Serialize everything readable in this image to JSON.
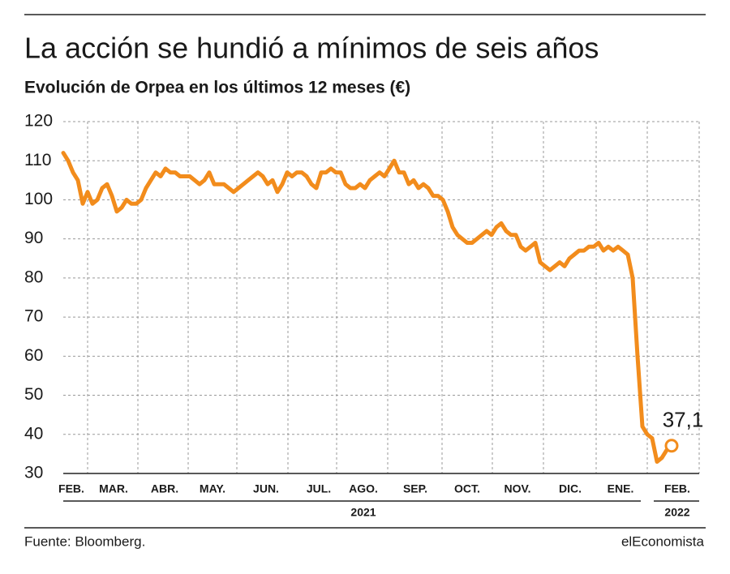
{
  "chart_data": {
    "type": "line",
    "title": "La acción se hundió a mínimos de seis años",
    "subtitle": "Evolución de Orpea en los últimos 12 meses (€)",
    "series": [
      {
        "color": "#f28c1c",
        "values": [
          112,
          110,
          107,
          105,
          99,
          102,
          99,
          100,
          103,
          104,
          101,
          97,
          98,
          100,
          99,
          99,
          100,
          103,
          105,
          107,
          106,
          108,
          107,
          107,
          106,
          106,
          106,
          105,
          104,
          105,
          107,
          104,
          104,
          104,
          103,
          102,
          103,
          104,
          105,
          106,
          107,
          106,
          104,
          105,
          102,
          104,
          107,
          106,
          107,
          107,
          106,
          104,
          103,
          107,
          107,
          108,
          107,
          107,
          104,
          103,
          103,
          104,
          103,
          105,
          106,
          107,
          106,
          108,
          110,
          107,
          107,
          104,
          105,
          103,
          104,
          103,
          101,
          101,
          100,
          97,
          93,
          91,
          90,
          89,
          89,
          90,
          91,
          92,
          91,
          93,
          94,
          92,
          91,
          91,
          88,
          87,
          88,
          89,
          84,
          83,
          82,
          83,
          84,
          83,
          85,
          86,
          87,
          87,
          88,
          88,
          89,
          87,
          88,
          87,
          88,
          87,
          86,
          80,
          60,
          42,
          40,
          39,
          33,
          34,
          36,
          37.1
        ],
        "value_labels": [
          null,
          null,
          null,
          null,
          null,
          null,
          null,
          null,
          null,
          null,
          null,
          null,
          null,
          null,
          null,
          null,
          null,
          null,
          null,
          null,
          null,
          null,
          null,
          null,
          null,
          null,
          null,
          null,
          null,
          null,
          null,
          null,
          null,
          null,
          null,
          null,
          null,
          null,
          null,
          null,
          null,
          null,
          null,
          null,
          null,
          null,
          null,
          null,
          null,
          null,
          null,
          null,
          null,
          null,
          null,
          null,
          null,
          null,
          null,
          null,
          null,
          null,
          null,
          null,
          null,
          null,
          null,
          null,
          null,
          null,
          null,
          null,
          null,
          null,
          null,
          null,
          null,
          null,
          null,
          null,
          null,
          null,
          null,
          null,
          null,
          null,
          null,
          null,
          null,
          null,
          null,
          null,
          null,
          null,
          null,
          null,
          null,
          null,
          null,
          null,
          null,
          null,
          null,
          null,
          null,
          null,
          null,
          null,
          null,
          null,
          null,
          null,
          null,
          null,
          null,
          null,
          null,
          null,
          null,
          null,
          null,
          null,
          null,
          null,
          null,
          "37,1"
        ]
      }
    ],
    "ylim": [
      30,
      120
    ],
    "yticks": [
      30,
      40,
      50,
      60,
      70,
      80,
      90,
      100,
      110,
      120
    ],
    "grid": true,
    "month_labels": [
      "FEB.",
      "MAR.",
      "ABR.",
      "MAY.",
      "JUN.",
      "JUL.",
      "AGO.",
      "SEP.",
      "OCT.",
      "NOV.",
      "DIC.",
      "ENE.",
      "FEB."
    ],
    "year_labels": [
      "2021",
      "2022"
    ],
    "source": "Fuente: Bloomberg.",
    "brand": "elEconomista"
  }
}
